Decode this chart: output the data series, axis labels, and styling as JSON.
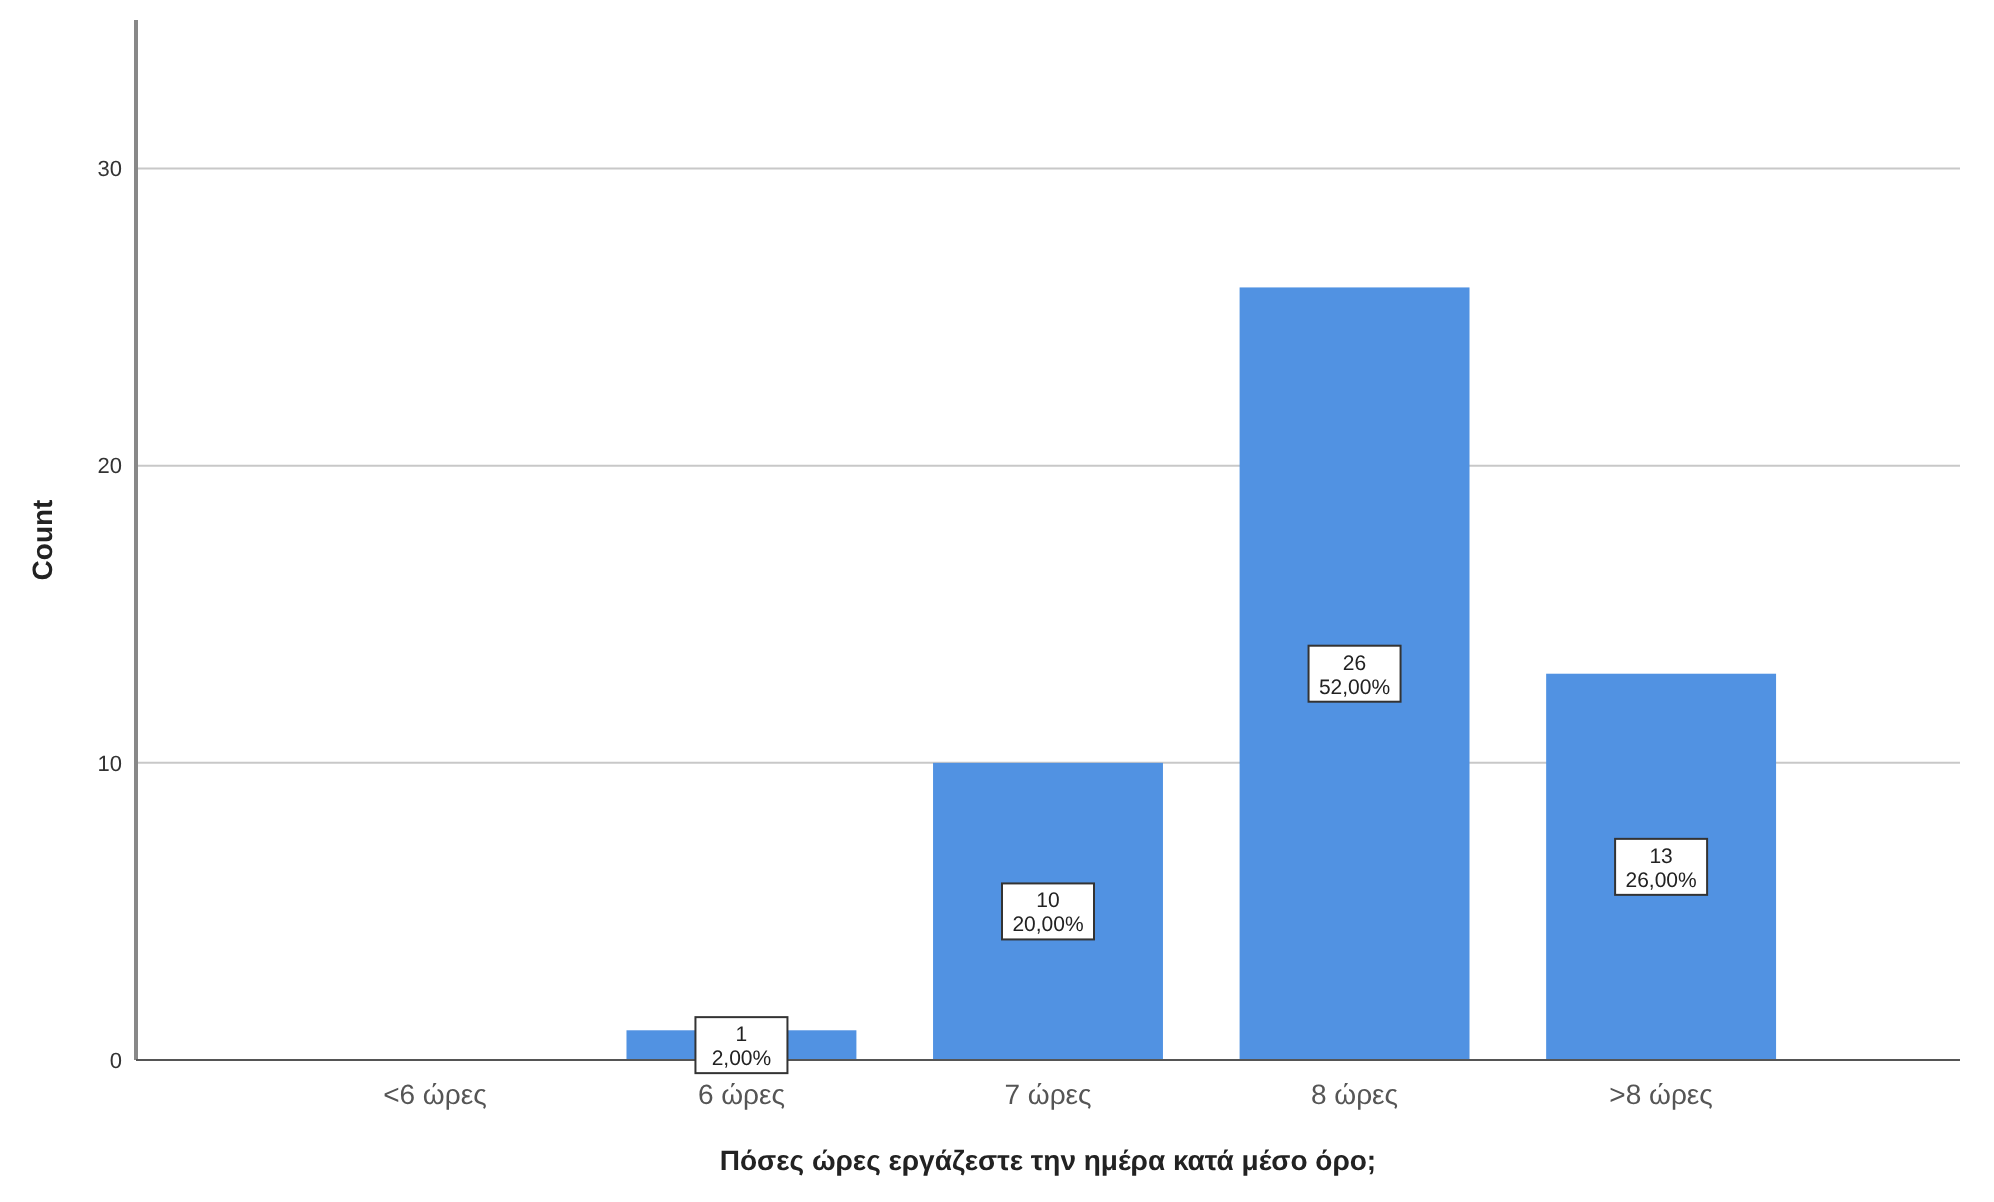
{
  "chart_data": {
    "type": "bar",
    "xlabel": "Πόσες ώρες εργάζεστε την ημέρα κατά μέσο όρο;",
    "ylabel": "Count",
    "categories": [
      "<6 ώρες",
      "6 ώρες",
      "7 ώρες",
      "8 ώρες",
      ">8 ώρες"
    ],
    "values": [
      0,
      1,
      10,
      26,
      13
    ],
    "value_labels": [
      null,
      "1\n2,00%",
      "10\n20,00%",
      "26\n52,00%",
      "13\n26,00%"
    ],
    "color": "#5192e2",
    "ylim": [
      0,
      35
    ],
    "yticks": [
      0,
      10,
      20,
      30
    ],
    "grid": "y"
  }
}
